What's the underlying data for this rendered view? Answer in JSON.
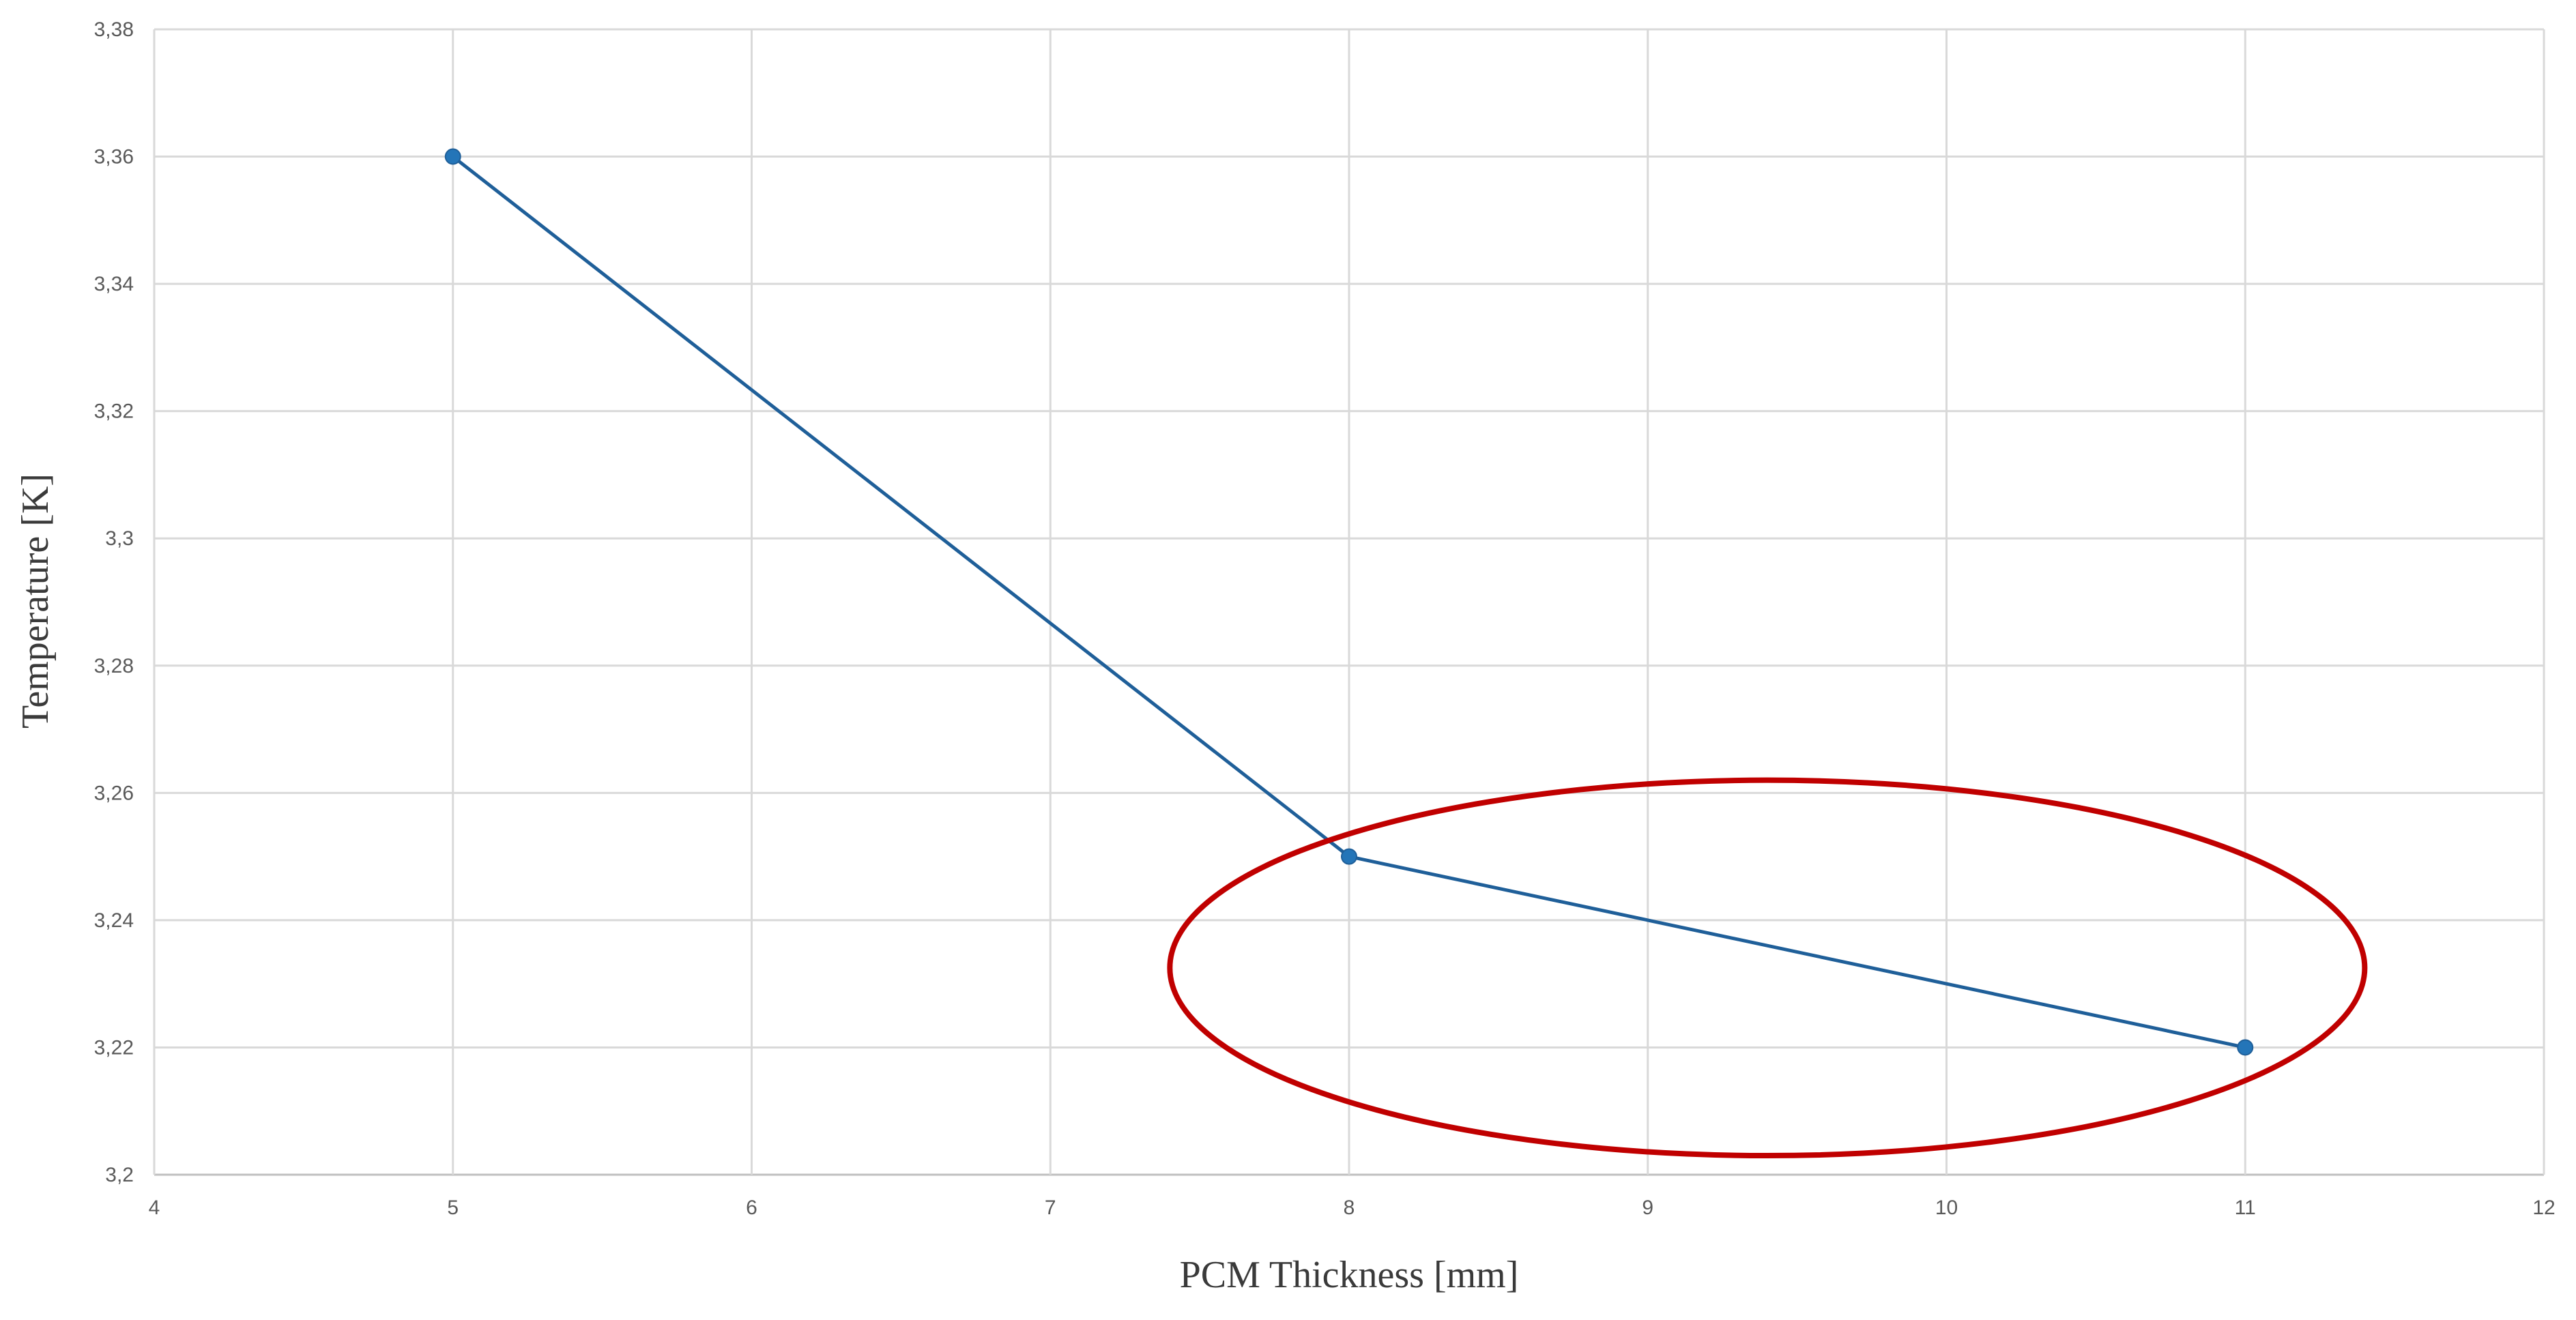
{
  "chart_data": {
    "type": "line",
    "xlabel": "PCM Thickness [mm]",
    "ylabel": "Temperature [K]",
    "xlim": [
      4,
      12
    ],
    "ylim": [
      3.2,
      3.38
    ],
    "x_ticks": [
      4,
      5,
      6,
      7,
      8,
      9,
      10,
      11,
      12
    ],
    "y_ticks": [
      3.2,
      3.22,
      3.24,
      3.26,
      3.28,
      3.3,
      3.32,
      3.34,
      3.36,
      3.38
    ],
    "x_tick_labels": [
      "4",
      "5",
      "6",
      "7",
      "8",
      "9",
      "10",
      "11",
      "12"
    ],
    "y_tick_labels": [
      "3,2",
      "3,22",
      "3,24",
      "3,26",
      "3,28",
      "3,3",
      "3,32",
      "3,34",
      "3,36",
      "3,38"
    ],
    "grid": true,
    "series": [
      {
        "x": [
          5,
          8,
          11
        ],
        "y": [
          3.36,
          3.25,
          3.22
        ],
        "color": "#1f5f99",
        "marker_color": "#2475b8"
      }
    ],
    "annotation": {
      "shape": "ellipse",
      "color": "#c00000",
      "x_center": 9.4,
      "y_center": 3.2325,
      "x_radius": 2.0,
      "y_radius": 0.0295
    }
  },
  "colors": {
    "grid": "#d9d9d9",
    "axis": "#bfbfbf",
    "background": "#ffffff"
  }
}
